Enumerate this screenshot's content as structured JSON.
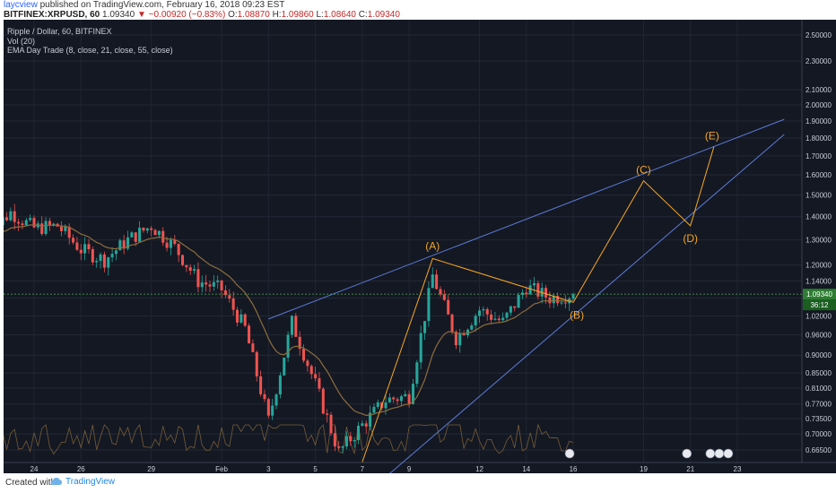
{
  "header": {
    "author": "laycview",
    "published_text": "published on TradingView.com, February 16, 2018 09:23 EST",
    "symbol": "BITFINEX:XRPUSD, 60",
    "last": "1.09340",
    "change": "−0.00920 (−0.83%)",
    "o_label": "O:",
    "o_value": "1.08870",
    "h_label": "H:",
    "h_value": "1.09860",
    "l_label": "L:",
    "l_value": "1.08640",
    "c_label": "C:",
    "c_value": "1.09340"
  },
  "legend": {
    "title": "Ripple / Dollar, 60, BITFINEX",
    "volume": "Vol (20)",
    "ema": "EMA Day Trade (8, close, 21, close, 55, close)"
  },
  "price_tag": {
    "value": "1.09340",
    "countdown": "36:12"
  },
  "footer": {
    "created": "Created with",
    "brand": "TradingView"
  },
  "colors": {
    "background": "#141823",
    "up": "#26a69a",
    "down": "#ef5350",
    "ema": "#8d6e3c",
    "wave": "#f5a623",
    "channel": "#5b7bd5",
    "price_tag": "#2e7d32"
  },
  "chart_data": {
    "type": "candlestick",
    "yscale": "log",
    "ylim": [
      0.61,
      2.62
    ],
    "y_ticks": [
      0.665,
      0.7,
      0.735,
      0.77,
      0.81,
      0.85,
      0.9,
      0.96,
      1.02,
      1.08,
      1.14,
      1.2,
      1.3,
      1.4,
      1.5,
      1.6,
      1.7,
      1.8,
      1.9,
      2.0,
      2.1,
      2.3,
      2.5
    ],
    "y_tick_labels": [
      "0.66500",
      "0.70000",
      "0.73500",
      "0.77000",
      "0.81000",
      "0.85000",
      "0.90000",
      "0.96000",
      "1.02000",
      "1.08000",
      "1.14000",
      "1.20000",
      "1.30000",
      "1.40000",
      "1.50000",
      "1.60000",
      "1.70000",
      "1.80000",
      "1.90000",
      "2.00000",
      "2.10000",
      "2.30000",
      "2.50000"
    ],
    "x_ticks": [
      "24",
      "26",
      "29",
      "Feb",
      "3",
      "5",
      "7",
      "9",
      "12",
      "14",
      "16",
      "19",
      "21",
      "23"
    ],
    "price_series": [
      [
        "Jan 22",
        1.32
      ],
      [
        "Jan 23",
        1.42
      ],
      [
        "Jan 24",
        1.35
      ],
      [
        "Jan 25",
        1.36
      ],
      [
        "Jan 26",
        1.26
      ],
      [
        "Jan 27",
        1.22
      ],
      [
        "Jan 28",
        1.3
      ],
      [
        "Jan 29",
        1.36
      ],
      [
        "Jan 30",
        1.27
      ],
      [
        "Jan 31",
        1.14
      ],
      [
        "Feb 1",
        1.11
      ],
      [
        "Feb 2",
        0.98
      ],
      [
        "Feb 3",
        0.73
      ],
      [
        "Feb 4",
        1.0
      ],
      [
        "Feb 5",
        0.82
      ],
      [
        "Feb 6",
        0.66
      ],
      [
        "Feb 7",
        0.72
      ],
      [
        "Feb 8",
        0.78
      ],
      [
        "Feb 9",
        0.79
      ],
      [
        "Feb 10",
        1.16
      ],
      [
        "Feb 11",
        0.95
      ],
      [
        "Feb 12",
        1.04
      ],
      [
        "Feb 13",
        1.0
      ],
      [
        "Feb 14",
        1.12
      ],
      [
        "Feb 15",
        1.08
      ],
      [
        "Feb 16",
        1.0934
      ]
    ],
    "wave_points": [
      {
        "label": "(A)",
        "date": "Feb 10",
        "price": 1.225
      },
      {
        "label": "(B)",
        "date": "Feb 16",
        "price": 1.065
      },
      {
        "label": "(C)",
        "date": "Feb 19",
        "price": 1.57
      },
      {
        "label": "(D)",
        "date": "Feb 21",
        "price": 1.36
      },
      {
        "label": "(E)",
        "date": "Feb 22",
        "price": 1.75
      }
    ],
    "channel_lines": [
      {
        "from": [
          "Feb 3",
          1.01
        ],
        "to": [
          "Feb 25",
          1.91
        ]
      },
      {
        "from": [
          "Feb 8",
          0.61
        ],
        "to": [
          "Feb 25",
          1.82
        ]
      }
    ],
    "event_badges": [
      "Feb 16",
      "Feb 21",
      "Feb 22",
      "Feb 22",
      "Feb 22"
    ]
  }
}
